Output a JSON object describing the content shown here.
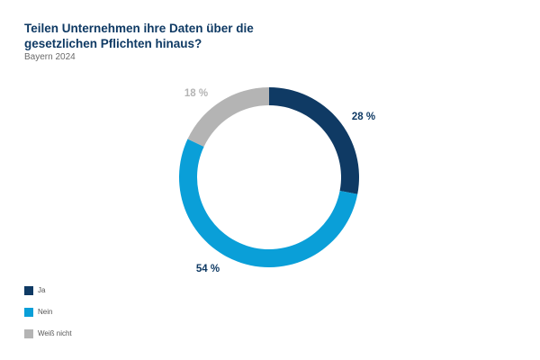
{
  "chart_data": {
    "type": "pie",
    "variant": "donut",
    "title": "Teilen Unternehmen ihre Daten über die gesetzlichen Pflichten hinaus?",
    "subtitle": "Bayern 2024",
    "unit": "%",
    "categories": [
      "Ja",
      "Nein",
      "Weiß nicht"
    ],
    "values": [
      28,
      54,
      18
    ],
    "value_labels": [
      "28 %",
      "54 %",
      "18 %"
    ],
    "colors": [
      "#0f3a64",
      "#0a9fd8",
      "#b4b4b4"
    ],
    "legend": "bottom-left"
  }
}
